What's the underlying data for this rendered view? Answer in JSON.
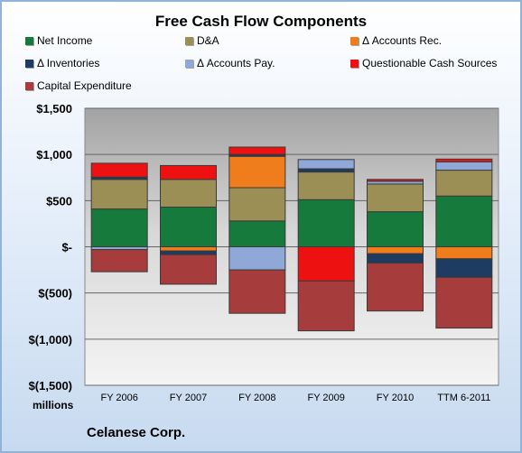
{
  "chart_data": {
    "type": "bar",
    "stacked": true,
    "title": "Free Cash Flow Components",
    "ylabel": "",
    "unit_label": "millions",
    "company": "Celanese Corp.",
    "categories": [
      "FY 2006",
      "FY 2007",
      "FY 2008",
      "FY 2009",
      "FY 2010",
      "TTM 6-2011"
    ],
    "ylim": [
      -1500,
      1500
    ],
    "yticks": [
      1500,
      1000,
      500,
      0,
      -500,
      -1000,
      -1500
    ],
    "ytick_labels": [
      "$1,500",
      "$1,000",
      "$500",
      "$-",
      "$(500)",
      "$(1,000)",
      "$(1,500)"
    ],
    "grid": true,
    "legend_position": "top",
    "series": [
      {
        "name": "Net Income",
        "color": "#157a3c",
        "values": [
          410,
          430,
          280,
          510,
          380,
          550
        ]
      },
      {
        "name": "D&A",
        "color": "#9c8f56",
        "values": [
          320,
          300,
          360,
          300,
          300,
          280
        ]
      },
      {
        "name": "Δ Accounts Rec.",
        "color": "#f07d1c",
        "values": [
          0,
          -45,
          340,
          0,
          -75,
          -130
        ]
      },
      {
        "name": "Δ Inventories",
        "color": "#1e3b62",
        "values": [
          25,
          -40,
          20,
          35,
          -100,
          -200
        ]
      },
      {
        "name": "Δ Accounts Pay.",
        "color": "#8fa8d8",
        "values": [
          -30,
          0,
          -250,
          100,
          30,
          90
        ]
      },
      {
        "name": "Questionable Cash Sources",
        "color": "#ee1111",
        "values": [
          150,
          150,
          80,
          -370,
          20,
          30
        ]
      },
      {
        "name": "Capital Expenditure",
        "color": "#a63c3c",
        "values": [
          -240,
          -320,
          -470,
          -540,
          -520,
          -550
        ]
      }
    ]
  }
}
